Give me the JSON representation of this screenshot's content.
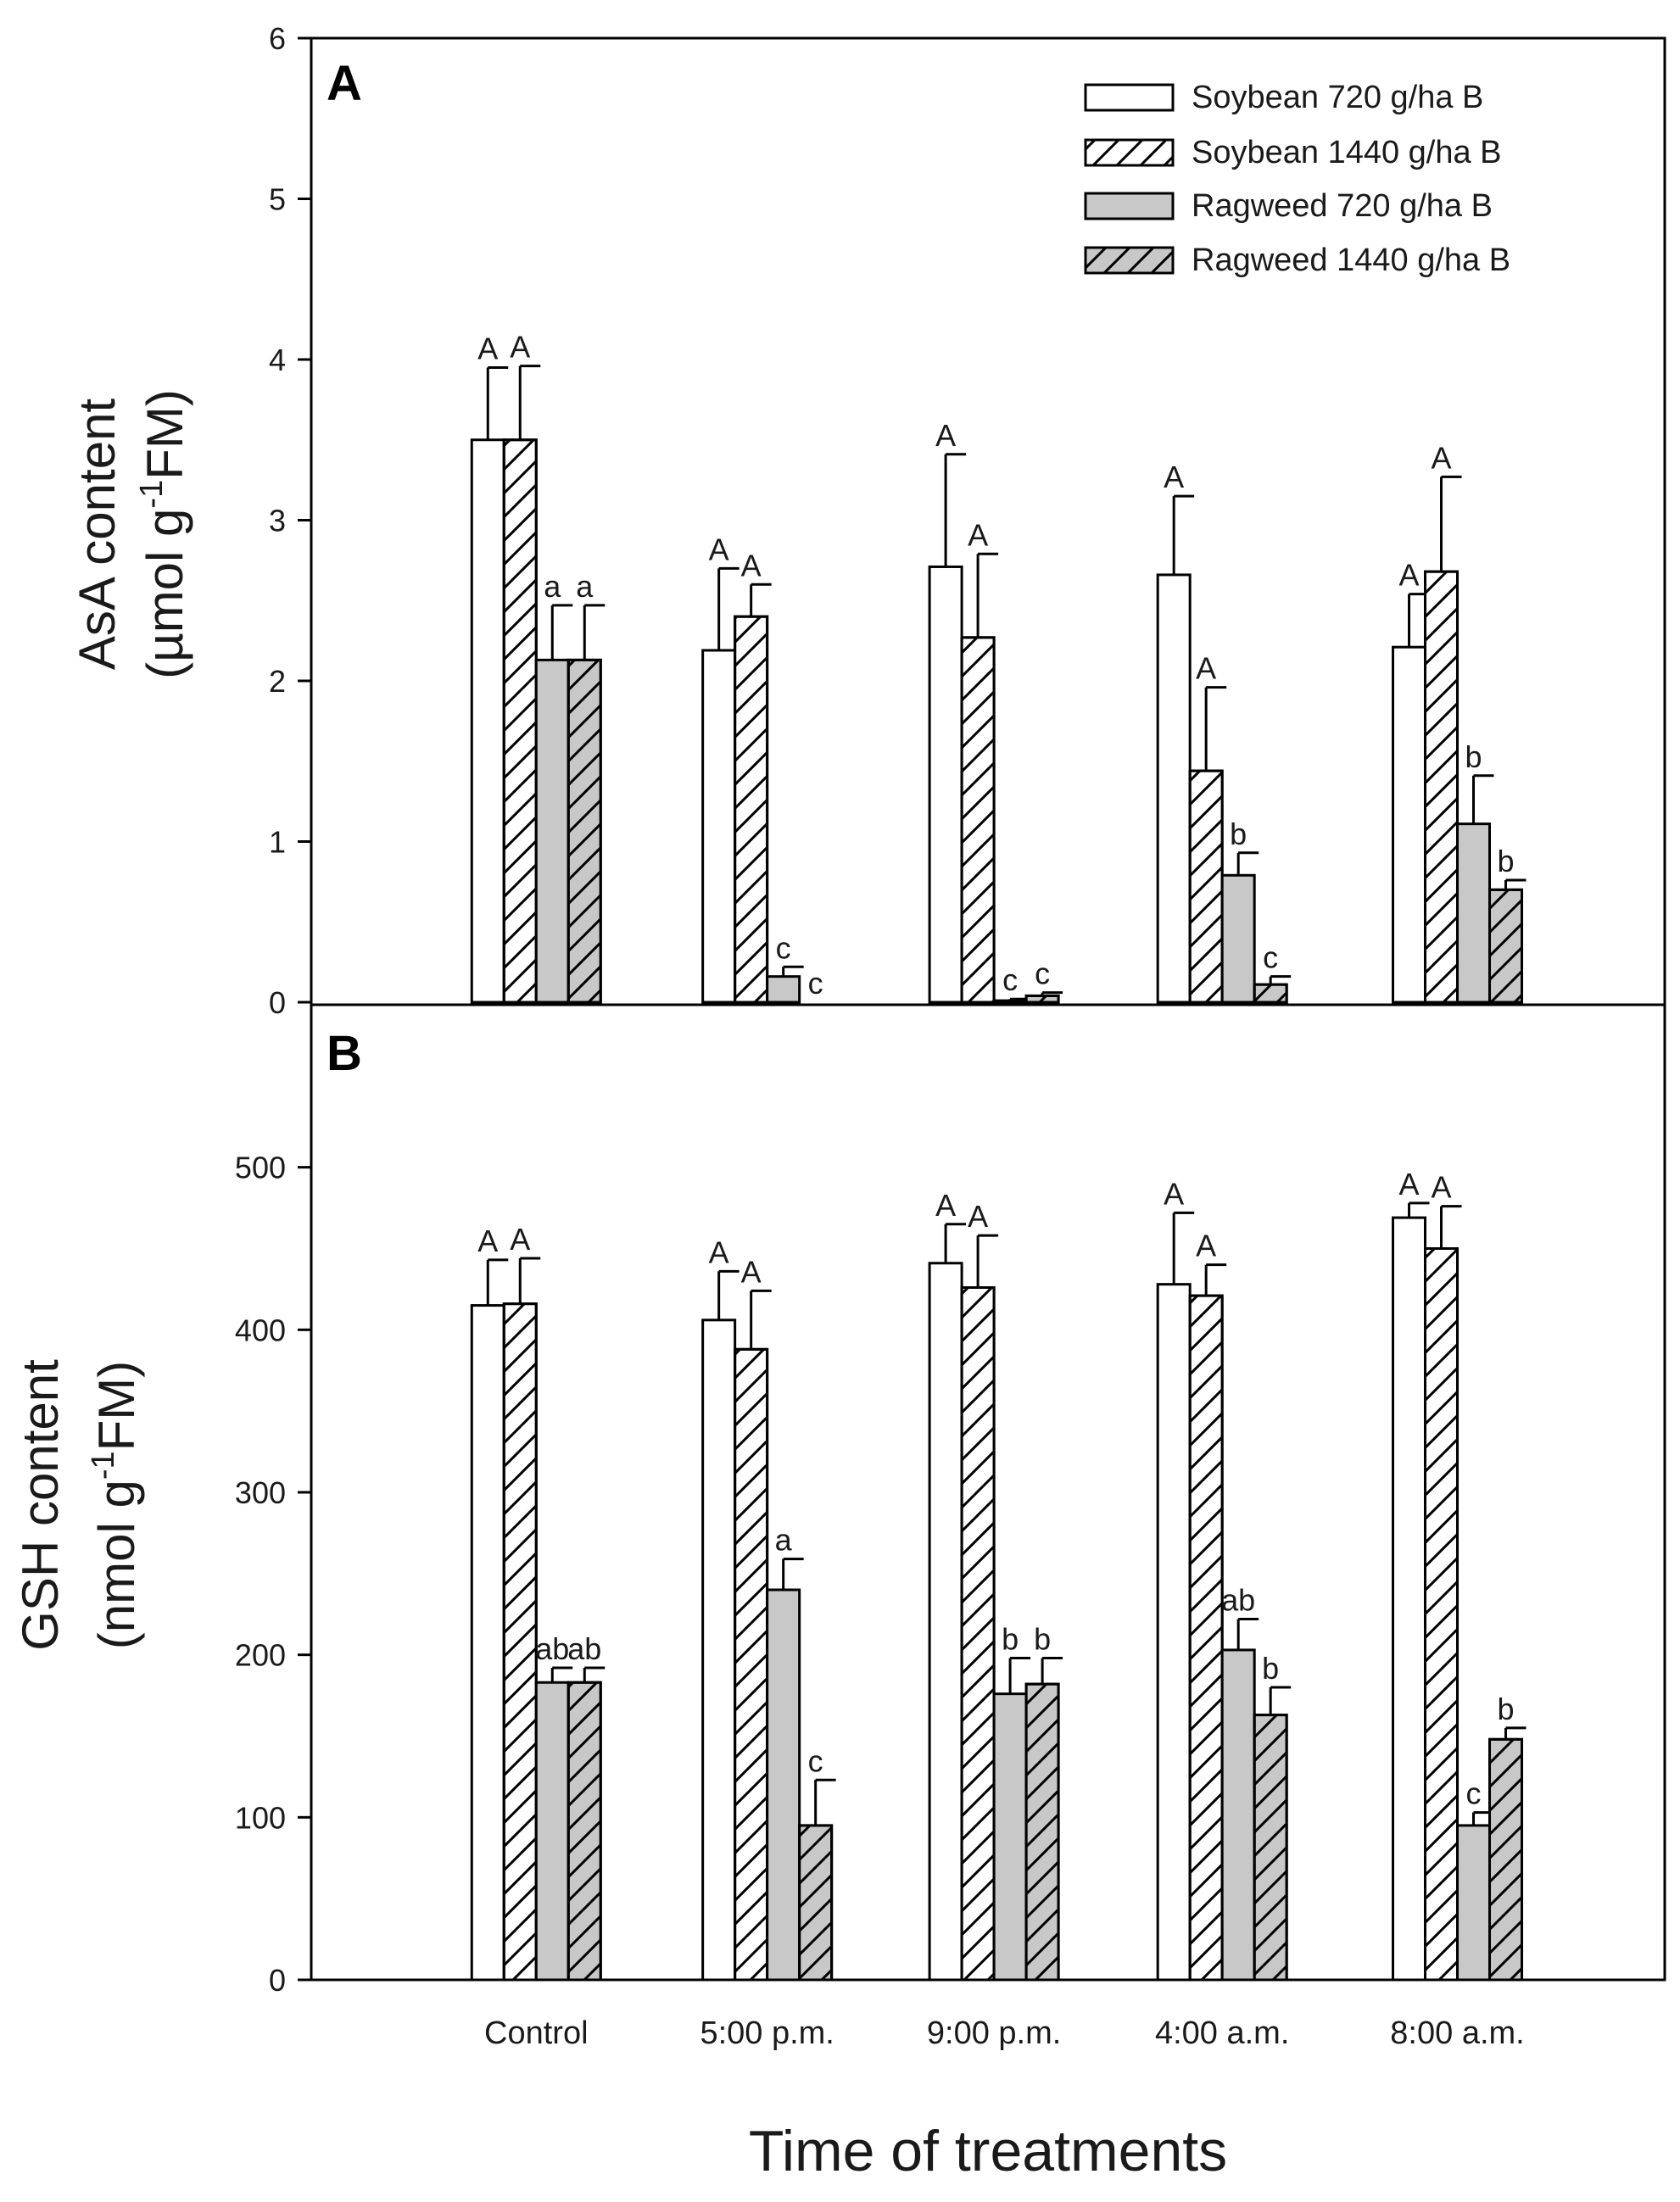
{
  "chart_data": [
    {
      "panel_label": "A",
      "type": "bar",
      "title": "",
      "xlabel": "",
      "ylabel_line1": "AsA content",
      "ylabel_line2_prefix": "(µmol g",
      "ylabel_line2_sup": "-1",
      "ylabel_line2_suffix": "FM)",
      "ylim": [
        0,
        6
      ],
      "yticks": [
        0,
        1,
        2,
        3,
        4,
        5,
        6
      ],
      "ytick_labels": [
        "0",
        "1",
        "2",
        "3",
        "4",
        "5",
        "6"
      ],
      "grid": false,
      "legend_position": "top-right",
      "categories": [
        "Control",
        "5:00 p.m.",
        "9:00 p.m.",
        "4:00 a.m.",
        "8:00 a.m."
      ],
      "series": [
        {
          "name": "Soybean 720 g/ha B",
          "fill": "white",
          "hatched": false,
          "values": [
            3.5,
            2.19,
            2.71,
            2.66,
            2.21
          ],
          "errors": [
            0.45,
            0.51,
            0.7,
            0.49,
            0.33
          ],
          "letters": [
            "A",
            "A",
            "A",
            "A",
            "A"
          ]
        },
        {
          "name": "Soybean 1440 g/ha B",
          "fill": "white",
          "hatched": true,
          "values": [
            3.5,
            2.4,
            2.27,
            1.44,
            2.68
          ],
          "errors": [
            0.46,
            0.2,
            0.52,
            0.52,
            0.59
          ],
          "letters": [
            "A",
            "A",
            "A",
            "A",
            "A"
          ]
        },
        {
          "name": "Ragweed 720 g/ha B",
          "fill": "gray",
          "hatched": false,
          "values": [
            2.13,
            0.16,
            0.01,
            0.79,
            1.11
          ],
          "errors": [
            0.34,
            0.06,
            0.01,
            0.14,
            0.3
          ],
          "letters": [
            "a",
            "c",
            "c",
            "b",
            "b"
          ]
        },
        {
          "name": "Ragweed 1440 g/ha B",
          "fill": "gray",
          "hatched": true,
          "values": [
            2.13,
            0.0,
            0.04,
            0.11,
            0.7
          ],
          "errors": [
            0.34,
            0.0,
            0.02,
            0.05,
            0.06
          ],
          "letters": [
            "a",
            "c",
            "c",
            "c",
            "b"
          ]
        }
      ]
    },
    {
      "panel_label": "B",
      "type": "bar",
      "title": "",
      "xlabel": "Time of treatments",
      "ylabel_line1": "GSH content",
      "ylabel_line2_prefix": "(nmol g",
      "ylabel_line2_sup": "-1",
      "ylabel_line2_suffix": "FM)",
      "ylim": [
        0,
        600
      ],
      "yticks": [
        0,
        100,
        200,
        300,
        400,
        500
      ],
      "ytick_labels": [
        "0",
        "100",
        "200",
        "300",
        "400",
        "500"
      ],
      "grid": false,
      "categories": [
        "Control",
        "5:00 p.m.",
        "9:00 p.m.",
        "4:00 a.m.",
        "8:00 a.m."
      ],
      "category_labels": [
        "Control",
        "5:00 p.m.",
        "9:00 p.m.",
        "4:00 a.m.",
        "8:00 a.m."
      ],
      "series": [
        {
          "name": "Soybean 720 g/ha B",
          "fill": "white",
          "hatched": false,
          "values": [
            415,
            406,
            441,
            428,
            469
          ],
          "errors": [
            28,
            30,
            24,
            44,
            9
          ],
          "letters": [
            "A",
            "A",
            "A",
            "A",
            "A"
          ]
        },
        {
          "name": "Soybean 1440 g/ha B",
          "fill": "white",
          "hatched": true,
          "values": [
            416,
            388,
            426,
            421,
            450
          ],
          "errors": [
            28,
            36,
            32,
            19,
            26
          ],
          "letters": [
            "A",
            "A",
            "A",
            "A",
            "A"
          ]
        },
        {
          "name": "Ragweed 720 g/ha B",
          "fill": "gray",
          "hatched": false,
          "values": [
            183,
            240,
            176,
            203,
            95
          ],
          "errors": [
            9,
            19,
            22,
            19,
            8
          ],
          "letters": [
            "ab",
            "a",
            "b",
            "ab",
            "c"
          ]
        },
        {
          "name": "Ragweed 1440 g/ha B",
          "fill": "gray",
          "hatched": true,
          "values": [
            183,
            95,
            182,
            163,
            148
          ],
          "errors": [
            9,
            28,
            16,
            17,
            7
          ],
          "letters": [
            "ab",
            "c",
            "b",
            "b",
            "b"
          ]
        }
      ]
    }
  ],
  "colors": {
    "bar_white": "#ffffff",
    "bar_gray": "#c8c8c8",
    "stroke": "#000000",
    "text": "#1a1a1a"
  }
}
